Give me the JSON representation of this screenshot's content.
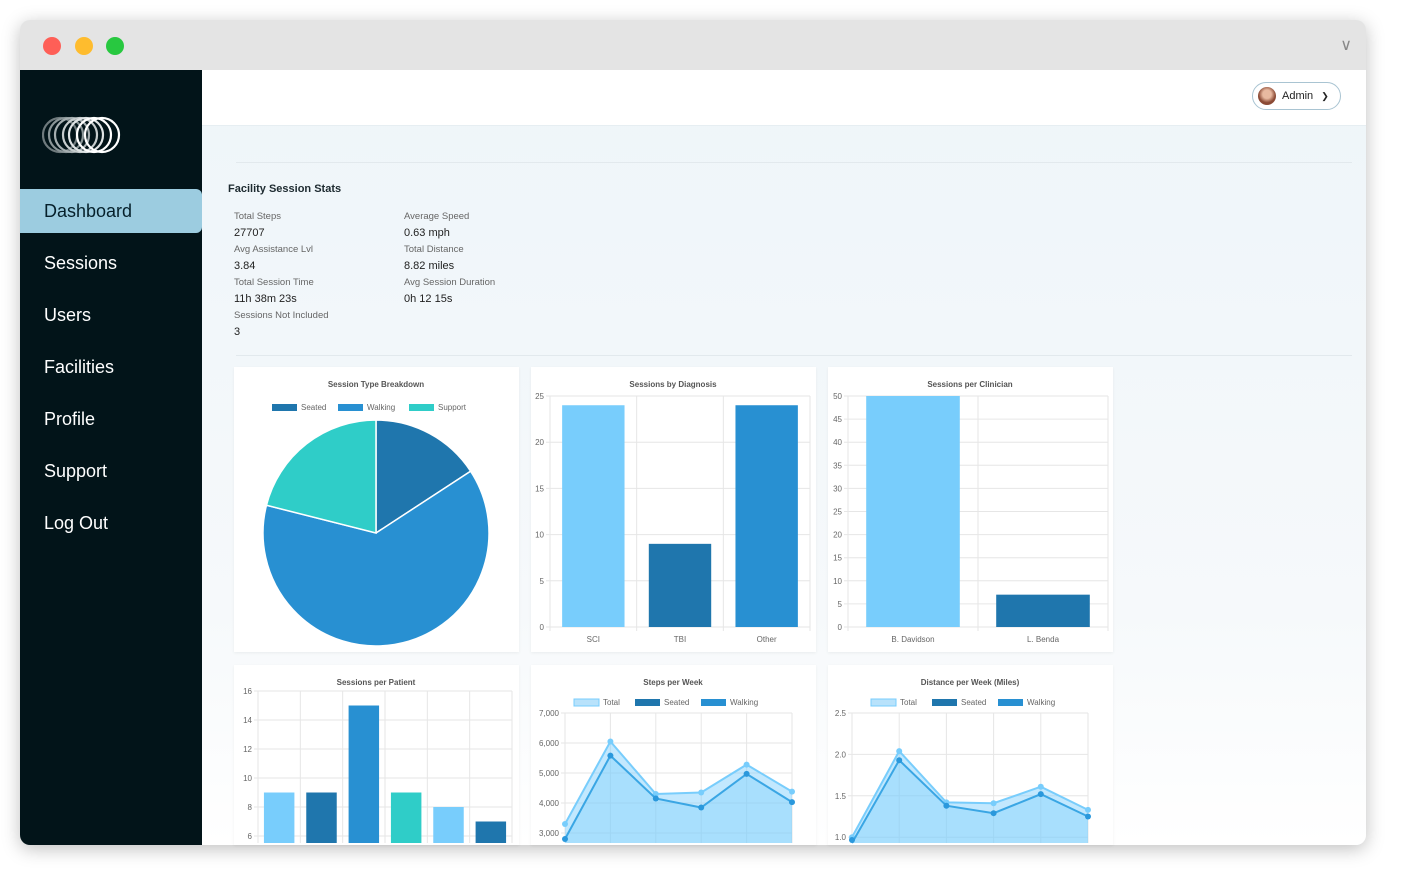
{
  "window": {
    "controls": [
      "close",
      "minimize",
      "maximize"
    ],
    "colors": {
      "close": "#fe5f57",
      "minimize": "#febc2e",
      "maximize": "#28c840"
    }
  },
  "sidebar": {
    "logo": "rings-logo",
    "items": [
      {
        "label": "Dashboard",
        "active": true
      },
      {
        "label": "Sessions"
      },
      {
        "label": "Users"
      },
      {
        "label": "Facilities"
      },
      {
        "label": "Profile"
      },
      {
        "label": "Support"
      },
      {
        "label": "Log Out"
      }
    ]
  },
  "header": {
    "user_label": "Admin"
  },
  "stats": {
    "title": "Facility Session Stats",
    "left": [
      {
        "label": "Total Steps",
        "value": "27707"
      },
      {
        "label": "Avg Assistance Lvl",
        "value": "3.84"
      },
      {
        "label": "Total Session Time",
        "value": "11h 38m 23s"
      },
      {
        "label": "Sessions Not Included",
        "value": "3"
      }
    ],
    "right": [
      {
        "label": "Average Speed",
        "value": "0.63 mph"
      },
      {
        "label": "Total Distance",
        "value": "8.82 miles"
      },
      {
        "label": "Avg Session Duration",
        "value": "0h 12 15s"
      }
    ]
  },
  "colors": {
    "seated": "#1f76ad",
    "walking": "#2890d2",
    "support": "#2fcdc8",
    "light": "#78cdfc",
    "total_fill": "#b8e2fb"
  },
  "chart_data": [
    {
      "type": "pie",
      "title": "Session Type Breakdown",
      "legend": [
        "Seated",
        "Walking",
        "Support"
      ],
      "legend_position": "top",
      "values": [
        9,
        36,
        12
      ]
    },
    {
      "type": "bar",
      "title": "Sessions by Diagnosis",
      "categories": [
        "SCI",
        "TBI",
        "Other"
      ],
      "values": [
        24,
        9,
        24
      ],
      "bar_colors": [
        "light",
        "seated",
        "walking"
      ],
      "ylim": [
        0,
        25
      ],
      "ystep": 5,
      "grid": true
    },
    {
      "type": "bar",
      "title": "Sessions per Clinician",
      "categories": [
        "B. Davidson",
        "L. Benda"
      ],
      "values": [
        50,
        7
      ],
      "bar_colors": [
        "light",
        "seated"
      ],
      "ylim": [
        0,
        50
      ],
      "ystep": 5,
      "grid": true
    },
    {
      "type": "bar",
      "title": "Sessions per Patient",
      "categories": [
        "",
        "",
        "",
        "",
        "",
        ""
      ],
      "values": [
        9,
        9,
        15,
        9,
        8,
        7
      ],
      "bar_colors": [
        "light",
        "seated",
        "walking",
        "support",
        "light",
        "seated"
      ],
      "ylim": [
        0,
        16
      ],
      "ystep": 2,
      "grid": true
    },
    {
      "type": "area",
      "title": "Steps per Week",
      "legend": [
        "Total",
        "Seated",
        "Walking"
      ],
      "legend_position": "top",
      "ylim": [
        0,
        7000
      ],
      "ystep": 1000,
      "tick_format": "thousands",
      "grid": true,
      "series": [
        {
          "name": "Total",
          "values": [
            3300,
            6050,
            4300,
            4350,
            5280,
            4380
          ]
        },
        {
          "name": "Walking",
          "values": [
            2800,
            5580,
            4150,
            3850,
            4970,
            4030
          ]
        }
      ]
    },
    {
      "type": "area",
      "title": "Distance per Week (Miles)",
      "legend": [
        "Total",
        "Seated",
        "Walking"
      ],
      "legend_position": "top",
      "ylim": [
        0,
        2.5
      ],
      "ystep": 0.5,
      "tick_format": "one_decimal",
      "grid": true,
      "series": [
        {
          "name": "Total",
          "values": [
            1.0,
            2.04,
            1.42,
            1.41,
            1.61,
            1.33
          ]
        },
        {
          "name": "Walking",
          "values": [
            0.9,
            1.93,
            1.38,
            1.29,
            1.52,
            1.25
          ]
        }
      ]
    }
  ]
}
